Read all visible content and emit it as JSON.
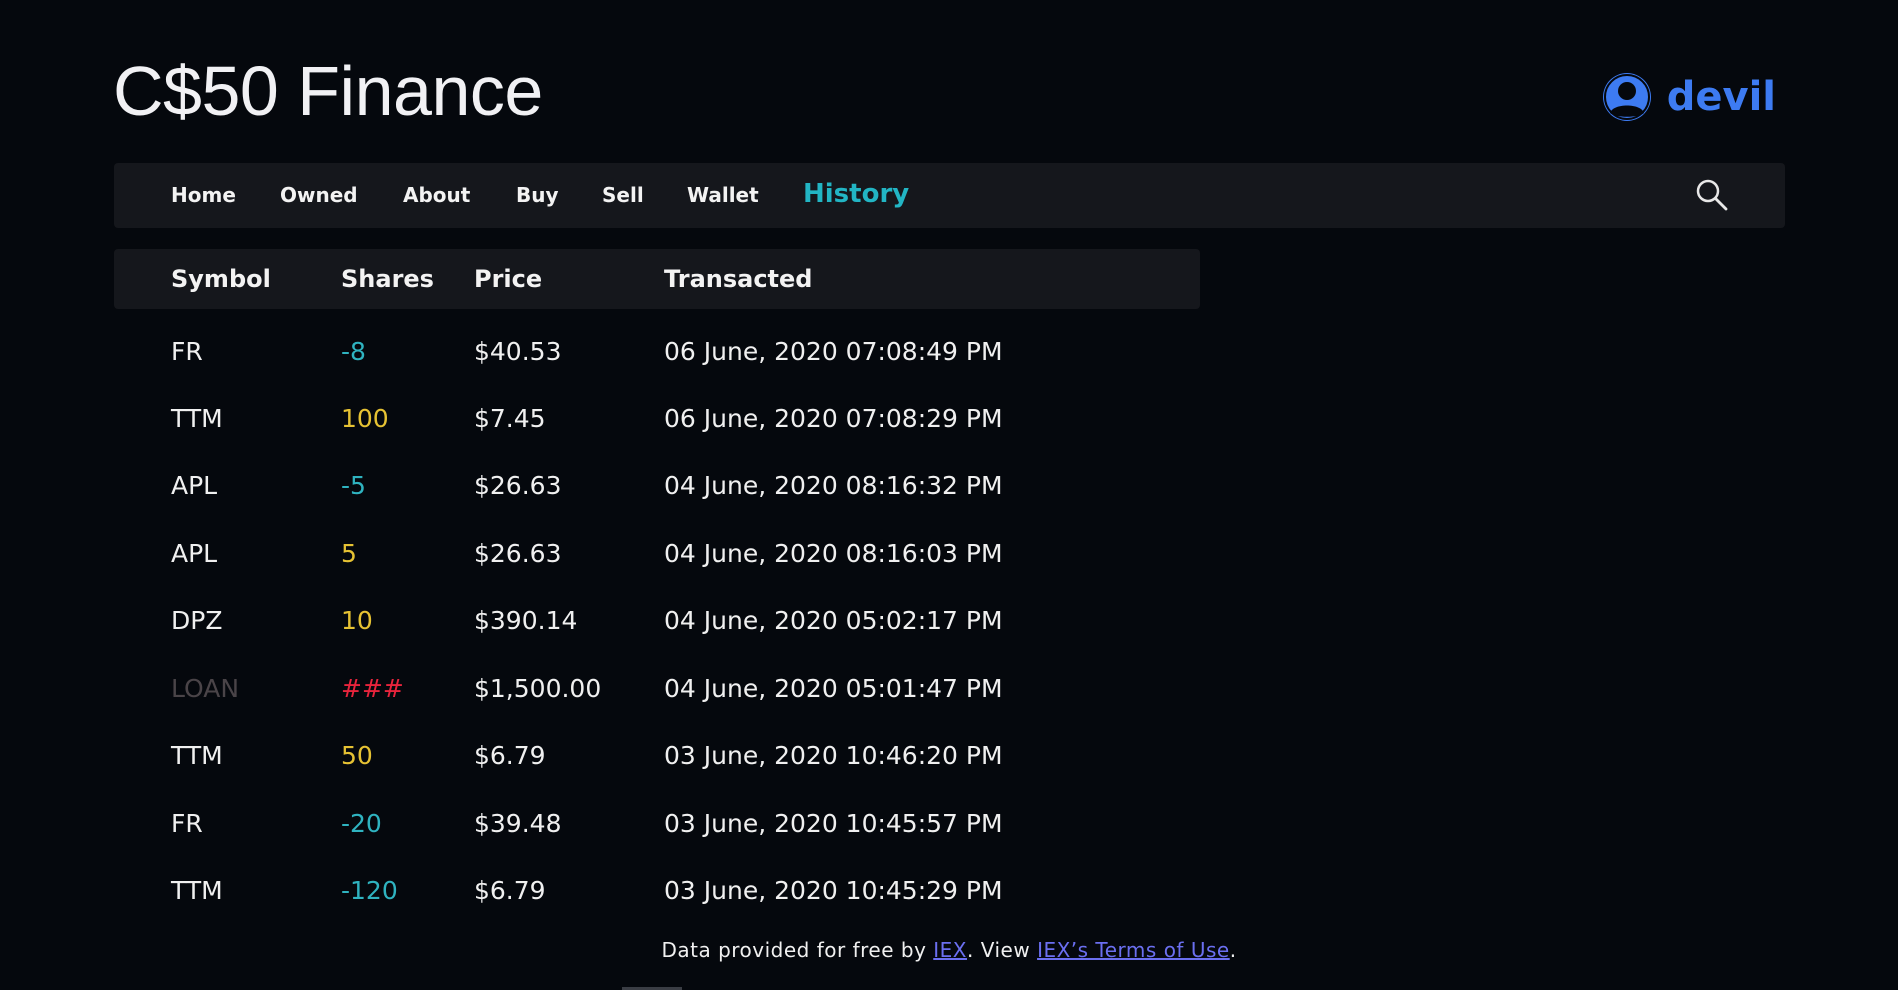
{
  "header": {
    "brand": "C$50 Finance",
    "username": "devil"
  },
  "nav": {
    "items": [
      {
        "label": "Home"
      },
      {
        "label": "Owned"
      },
      {
        "label": "About"
      },
      {
        "label": "Buy"
      },
      {
        "label": "Sell"
      },
      {
        "label": "Wallet"
      },
      {
        "label": "History",
        "active": true
      }
    ],
    "search_icon": "search-icon"
  },
  "table": {
    "columns": [
      "Symbol",
      "Shares",
      "Price",
      "Transacted"
    ],
    "rows": [
      {
        "symbol": "FR",
        "shares": "-8",
        "price": "$40.53",
        "transacted": "06 June, 2020 07:08:49 PM",
        "shares_color": "#2fb3c0",
        "symbol_color": "#f0f0f0"
      },
      {
        "symbol": "TTM",
        "shares": "100",
        "price": "$7.45",
        "transacted": "06 June, 2020 07:08:29 PM",
        "shares_color": "#e6c233",
        "symbol_color": "#f0f0f0"
      },
      {
        "symbol": "APL",
        "shares": "-5",
        "price": "$26.63",
        "transacted": "04 June, 2020 08:16:32 PM",
        "shares_color": "#2fb3c0",
        "symbol_color": "#f0f0f0"
      },
      {
        "symbol": "APL",
        "shares": "5",
        "price": "$26.63",
        "transacted": "04 June, 2020 08:16:03 PM",
        "shares_color": "#e6c233",
        "symbol_color": "#f0f0f0"
      },
      {
        "symbol": "DPZ",
        "shares": "10",
        "price": "$390.14",
        "transacted": "04 June, 2020 05:02:17 PM",
        "shares_color": "#e6c233",
        "symbol_color": "#f0f0f0"
      },
      {
        "symbol": "LOAN",
        "shares": "###",
        "price": "$1,500.00",
        "transacted": "04 June, 2020 05:01:47 PM",
        "shares_color": "#e8243c",
        "symbol_color": "#4a4448"
      },
      {
        "symbol": "TTM",
        "shares": "50",
        "price": "$6.79",
        "transacted": "03 June, 2020 10:46:20 PM",
        "shares_color": "#e6c233",
        "symbol_color": "#f0f0f0"
      },
      {
        "symbol": "FR",
        "shares": "-20",
        "price": "$39.48",
        "transacted": "03 June, 2020 10:45:57 PM",
        "shares_color": "#2fb3c0",
        "symbol_color": "#f0f0f0"
      },
      {
        "symbol": "TTM",
        "shares": "-120",
        "price": "$6.79",
        "transacted": "03 June, 2020 10:45:29 PM",
        "shares_color": "#2fb3c0",
        "symbol_color": "#f0f0f0"
      }
    ]
  },
  "footer": {
    "text_before": "Data provided for free by ",
    "iex_link": "IEX",
    "text_middle": ". View ",
    "terms_link": "IEX’s Terms of Use",
    "text_after": "."
  },
  "colors": {
    "background": "#05080d",
    "bar": "#15171c",
    "accent_active": "#22b5c4",
    "user": "#3d7bf2",
    "link": "#6b6ff0"
  }
}
